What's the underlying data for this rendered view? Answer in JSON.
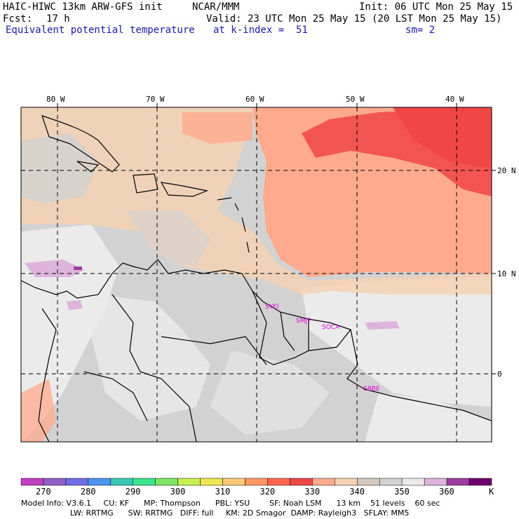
{
  "header": {
    "model": "HAIC-HIWC 13km ARW-GFS init",
    "center": "NCAR/MMM",
    "init": "Init: 06 UTC Mon 25 May 15",
    "fcst_label": "Fcst:",
    "fcst_value": "17 h",
    "valid": "Valid: 23 UTC Mon 25 May 15 (20 LST Mon 25 May 15)",
    "field": "Equivalent potential temperature",
    "level": "at k-index =  51",
    "smooth": "sm= 2"
  },
  "map": {
    "lon_labels": [
      "80 W",
      "70 W",
      "60 W",
      "50 W",
      "40 W"
    ],
    "lat_labels": [
      "20 N",
      "10 N",
      "0"
    ],
    "stations": [
      "SYEI",
      "SMJP",
      "SOCA",
      "SBBE"
    ]
  },
  "colorbar": {
    "unit": "K",
    "labels": [
      "270",
      "280",
      "290",
      "300",
      "310",
      "320",
      "330",
      "340",
      "350",
      "360"
    ],
    "colors": [
      "#c040c0",
      "#9060c8",
      "#6e6ee6",
      "#4c96f0",
      "#38c8b4",
      "#3ce68c",
      "#7ce664",
      "#c8f050",
      "#f0e650",
      "#ffc878",
      "#ff9664",
      "#ff6450",
      "#f04646",
      "#ffaa8c",
      "#f5d2b4",
      "#d2c8be",
      "#d2d2d2",
      "#ebebeb",
      "#dcb4dc",
      "#a03ca0",
      "#6e006e"
    ],
    "highlight_colors": {
      "ocean_gray": "#d2d2d2",
      "land_light": "#ebebeb",
      "warm": "#ffaa8c",
      "hot": "#f04646",
      "tan": "#f5d2b4"
    }
  },
  "footer": {
    "line1": "Model Info: V3.6.1     CU: KF      MP: Thompson      PBL: YSU        SF: Noah LSM      13 km    51 levels    60 sec",
    "line2": "                    LW: RRTMG      SW: RRTMG   DIFF: full     KM: 2D Smagor  DAMP: Rayleigh3   SFLAY: MM5"
  }
}
